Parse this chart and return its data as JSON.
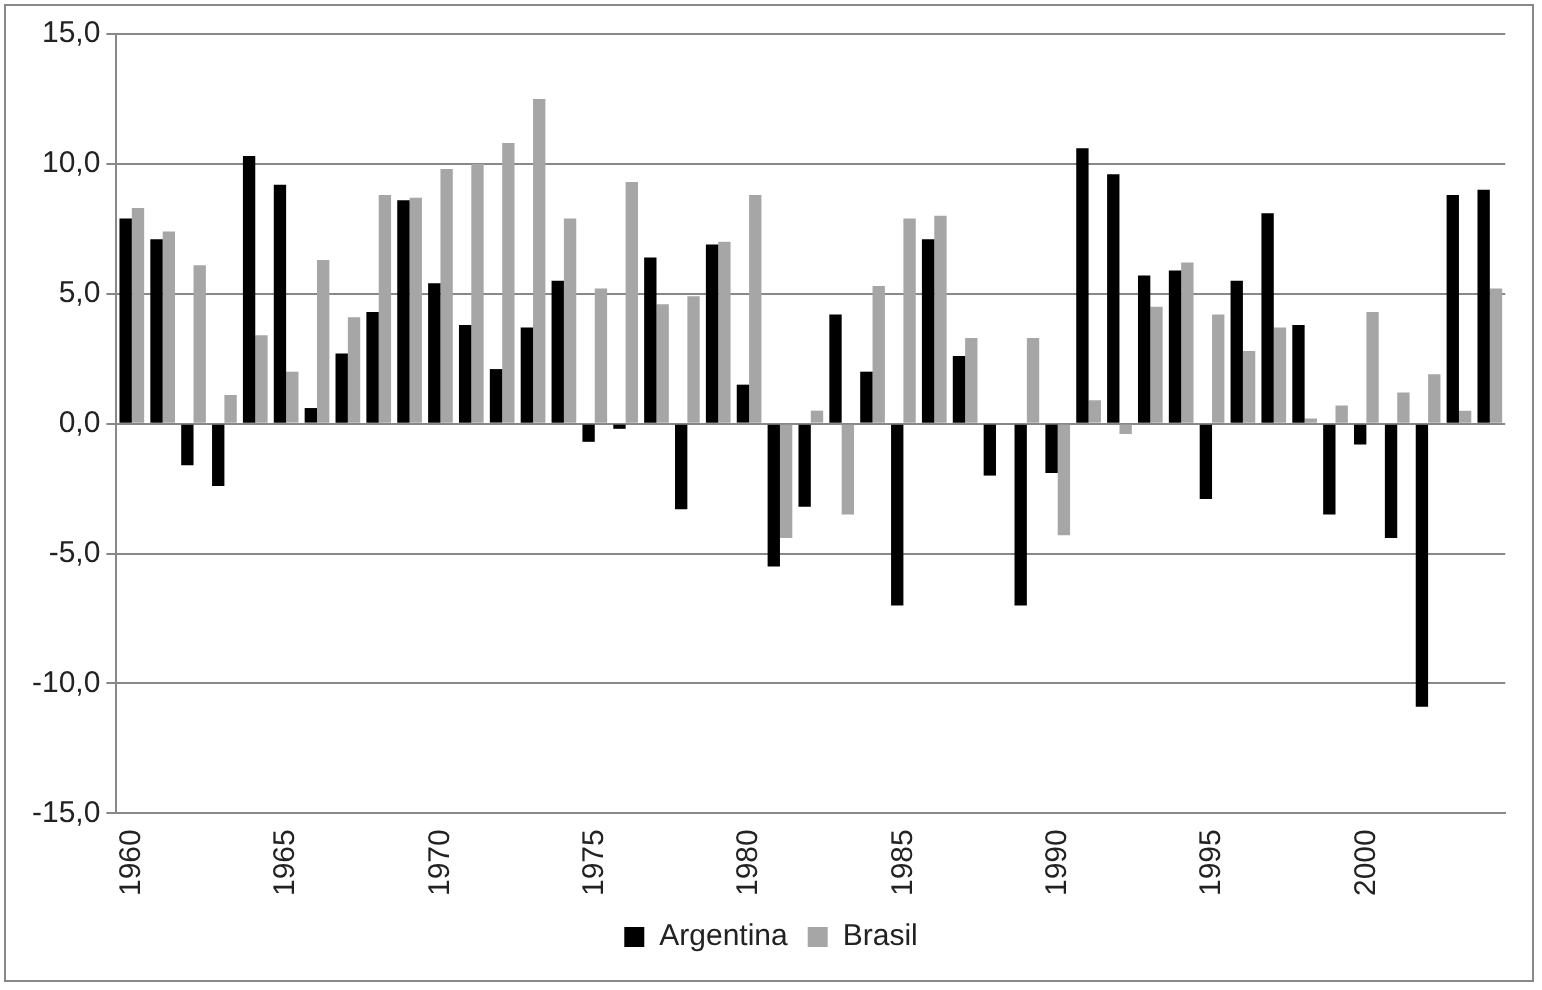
{
  "chart_data": {
    "type": "bar",
    "categories": [
      "1960",
      null,
      null,
      null,
      null,
      "1965",
      null,
      null,
      null,
      null,
      "1970",
      null,
      null,
      null,
      null,
      "1975",
      null,
      null,
      null,
      null,
      "1980",
      null,
      null,
      null,
      null,
      "1985",
      null,
      null,
      null,
      null,
      "1990",
      null,
      null,
      null,
      null,
      "1995",
      null,
      null,
      null,
      null,
      "2000",
      null,
      null,
      null,
      null
    ],
    "series": [
      {
        "name": "Argentina",
        "color": "#000000",
        "values": [
          7.9,
          7.1,
          -1.6,
          -2.4,
          10.3,
          9.2,
          0.6,
          2.7,
          4.3,
          8.6,
          5.4,
          3.8,
          2.1,
          3.7,
          5.5,
          -0.7,
          -0.2,
          6.4,
          -3.3,
          6.9,
          1.5,
          -5.5,
          -3.2,
          4.2,
          2.0,
          -7.0,
          7.1,
          2.6,
          -2.0,
          -7.0,
          -1.9,
          10.6,
          9.6,
          5.7,
          5.9,
          -2.9,
          5.5,
          8.1,
          3.8,
          -3.5,
          -0.8,
          -4.4,
          -10.9,
          8.8,
          9.0
        ]
      },
      {
        "name": "Brasil",
        "color": "#a6a6a6",
        "values": [
          8.3,
          7.4,
          6.1,
          1.1,
          3.4,
          2.0,
          6.3,
          4.1,
          8.8,
          8.7,
          9.8,
          10.0,
          10.8,
          12.5,
          7.9,
          5.2,
          9.3,
          4.6,
          4.9,
          7.0,
          8.8,
          -4.4,
          0.5,
          -3.5,
          5.3,
          7.9,
          8.0,
          3.3,
          null,
          3.3,
          -4.3,
          0.9,
          -0.4,
          4.5,
          6.2,
          4.2,
          2.8,
          3.7,
          0.2,
          0.7,
          4.3,
          1.2,
          1.9,
          0.5,
          5.2
        ]
      }
    ],
    "ylim": [
      -15,
      15
    ],
    "yticks": [
      {
        "value": -15,
        "label": "-15,0"
      },
      {
        "value": -10,
        "label": "-10,0"
      },
      {
        "value": -5,
        "label": "-5,0"
      },
      {
        "value": 0,
        "label": "0,0"
      },
      {
        "value": 5,
        "label": "5,0"
      },
      {
        "value": 10,
        "label": "10,0"
      },
      {
        "value": 15,
        "label": "15,0"
      }
    ],
    "grid": "y",
    "legend": "bottom"
  }
}
